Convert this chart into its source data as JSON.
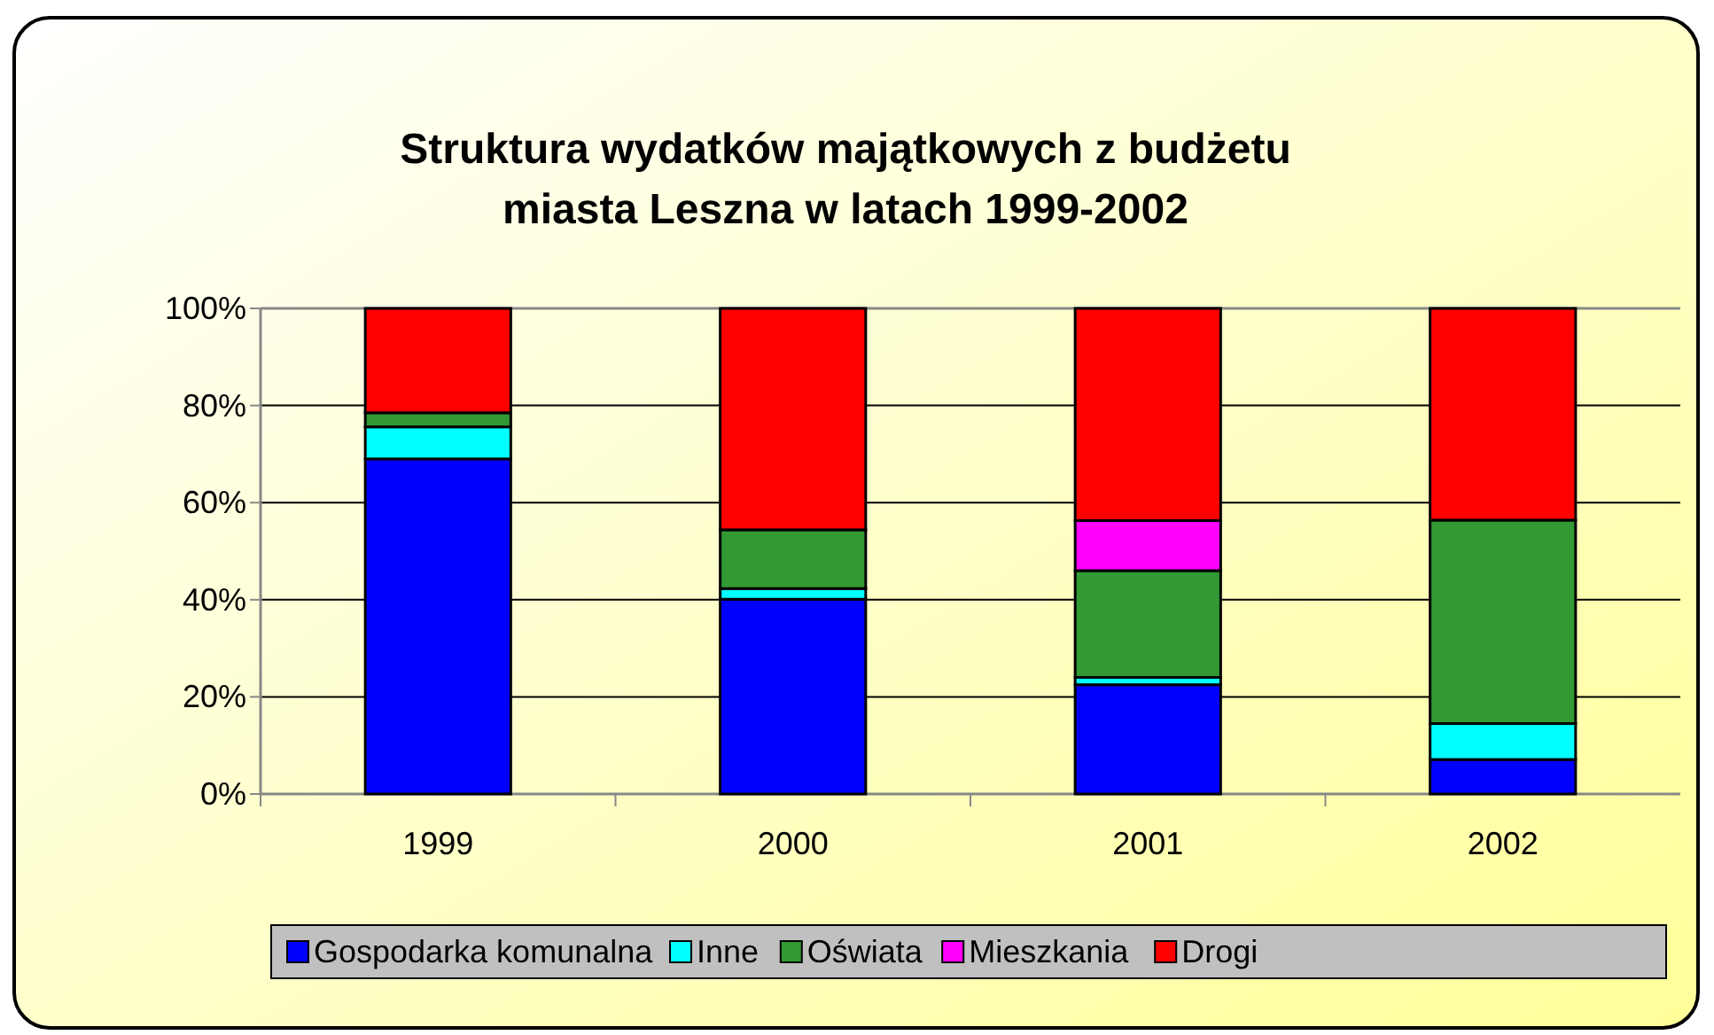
{
  "chart_data": {
    "type": "bar",
    "title": "Struktura wydatków majątkowych z budżetu\nmiasta Leszna w latach 1999-2002",
    "categories": [
      "1999",
      "2000",
      "2001",
      "2002"
    ],
    "stacked": true,
    "series": [
      {
        "name": "Gospodarka komunalna",
        "color": "#0000ff",
        "values": [
          69.0,
          40.1,
          22.5,
          7.1
        ]
      },
      {
        "name": "Inne",
        "color": "#00ffff",
        "values": [
          6.6,
          2.2,
          1.5,
          7.4
        ]
      },
      {
        "name": "Oświata",
        "color": "#339933",
        "values": [
          2.9,
          12.1,
          22.0,
          41.9
        ]
      },
      {
        "name": "Mieszkania",
        "color": "#ff00ff",
        "values": [
          0,
          0,
          10.3,
          0
        ]
      },
      {
        "name": "Drogi",
        "color": "#ff0000",
        "values": [
          21.5,
          45.6,
          43.7,
          43.6
        ]
      }
    ],
    "ylim": [
      0,
      100
    ],
    "yticks": [
      {
        "value": 0,
        "label": "0%"
      },
      {
        "value": 20,
        "label": "20%"
      },
      {
        "value": 40,
        "label": "40%"
      },
      {
        "value": 60,
        "label": "60%"
      },
      {
        "value": 80,
        "label": "80%"
      },
      {
        "value": 100,
        "label": "100%"
      }
    ],
    "grid": "y",
    "legend": "bottom"
  }
}
